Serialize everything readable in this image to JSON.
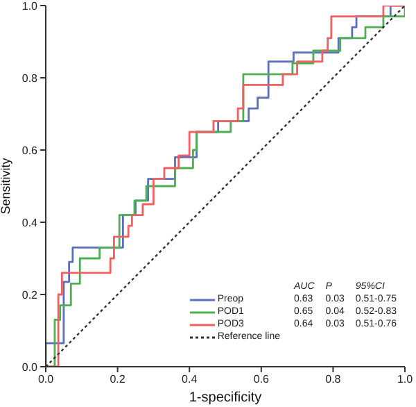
{
  "chart_data": {
    "type": "step",
    "xlabel": "1-specificity",
    "ylabel": "Sensitivity",
    "xlim": [
      0,
      1
    ],
    "ylim": [
      0,
      1
    ],
    "xticks": [
      {
        "value": 0,
        "label": "0.0"
      },
      {
        "value": 0.2,
        "label": "0.2"
      },
      {
        "value": 0.4,
        "label": "0.4"
      },
      {
        "value": 0.6,
        "label": "0.6"
      },
      {
        "value": 0.8,
        "label": "0.8"
      },
      {
        "value": 1,
        "label": "1.0"
      }
    ],
    "yticks": [
      {
        "value": 0,
        "label": "0.0"
      },
      {
        "value": 0.2,
        "label": "0.2"
      },
      {
        "value": 0.4,
        "label": "0.4"
      },
      {
        "value": 0.6,
        "label": "0.6"
      },
      {
        "value": 0.8,
        "label": "0.8"
      },
      {
        "value": 1,
        "label": "1.0"
      }
    ],
    "legend": "bottom right",
    "marker": "none",
    "series": [
      {
        "name": "Preop",
        "color": "#5b6fc0",
        "x": [
          0,
          0,
          0.05,
          0.05,
          0.065,
          0.065,
          0.075,
          0.075,
          0.215,
          0.215,
          0.25,
          0.25,
          0.285,
          0.285,
          0.36,
          0.36,
          0.42,
          0.42,
          0.48,
          0.48,
          0.565,
          0.565,
          0.59,
          0.59,
          0.62,
          0.62,
          0.69,
          0.69,
          0.815,
          0.815,
          0.853,
          0.853,
          0.865,
          0.865,
          0.96,
          0.96,
          1
        ],
        "values": [
          0,
          0.065,
          0.065,
          0.235,
          0.235,
          0.29,
          0.29,
          0.33,
          0.33,
          0.42,
          0.42,
          0.46,
          0.46,
          0.52,
          0.52,
          0.58,
          0.58,
          0.65,
          0.65,
          0.68,
          0.68,
          0.715,
          0.715,
          0.745,
          0.745,
          0.845,
          0.845,
          0.87,
          0.87,
          0.91,
          0.91,
          0.94,
          0.94,
          0.97,
          0.97,
          1,
          1
        ]
      },
      {
        "name": "POD1",
        "color": "#4cb050",
        "x": [
          0,
          0.025,
          0.025,
          0.04,
          0.04,
          0.07,
          0.07,
          0.095,
          0.095,
          0.15,
          0.15,
          0.205,
          0.205,
          0.247,
          0.247,
          0.28,
          0.28,
          0.36,
          0.36,
          0.41,
          0.41,
          0.42,
          0.42,
          0.515,
          0.515,
          0.55,
          0.55,
          0.687,
          0.687,
          0.745,
          0.745,
          0.82,
          0.82,
          0.89,
          0.89,
          0.94,
          0.94,
          1,
          1
        ],
        "values": [
          0,
          0,
          0.13,
          0.13,
          0.17,
          0.17,
          0.23,
          0.23,
          0.3,
          0.3,
          0.33,
          0.33,
          0.42,
          0.42,
          0.46,
          0.46,
          0.5,
          0.5,
          0.55,
          0.55,
          0.6,
          0.6,
          0.65,
          0.65,
          0.68,
          0.68,
          0.81,
          0.81,
          0.84,
          0.84,
          0.875,
          0.875,
          0.91,
          0.91,
          0.94,
          0.94,
          0.97,
          0.97,
          1
        ]
      },
      {
        "name": "POD3",
        "color": "#f06060",
        "x": [
          0,
          0.035,
          0.035,
          0.045,
          0.045,
          0.18,
          0.18,
          0.19,
          0.19,
          0.23,
          0.23,
          0.24,
          0.24,
          0.27,
          0.27,
          0.3,
          0.3,
          0.33,
          0.33,
          0.37,
          0.37,
          0.4,
          0.4,
          0.467,
          0.467,
          0.535,
          0.535,
          0.55,
          0.55,
          0.66,
          0.66,
          0.7,
          0.7,
          0.77,
          0.77,
          0.785,
          0.785,
          0.795,
          0.795,
          0.94,
          0.94,
          1
        ],
        "values": [
          0,
          0,
          0.2,
          0.2,
          0.26,
          0.26,
          0.3,
          0.3,
          0.36,
          0.36,
          0.39,
          0.39,
          0.42,
          0.42,
          0.45,
          0.45,
          0.52,
          0.52,
          0.55,
          0.55,
          0.585,
          0.585,
          0.65,
          0.65,
          0.68,
          0.68,
          0.715,
          0.715,
          0.78,
          0.78,
          0.81,
          0.81,
          0.845,
          0.845,
          0.875,
          0.875,
          0.91,
          0.91,
          0.97,
          0.97,
          1,
          1
        ]
      },
      {
        "name": "Reference line",
        "type": "line",
        "line_style": "dashed",
        "color": "#333333",
        "x": [
          0,
          1
        ],
        "values": [
          0,
          1
        ]
      }
    ],
    "annotations": [
      "AUC",
      "P",
      "95%CI",
      "0.63",
      "0.03",
      "0.51-0.75",
      "0.65",
      "0.04",
      "0.52-0.83",
      "0.64",
      "0.03",
      "0.51-0.76"
    ]
  }
}
